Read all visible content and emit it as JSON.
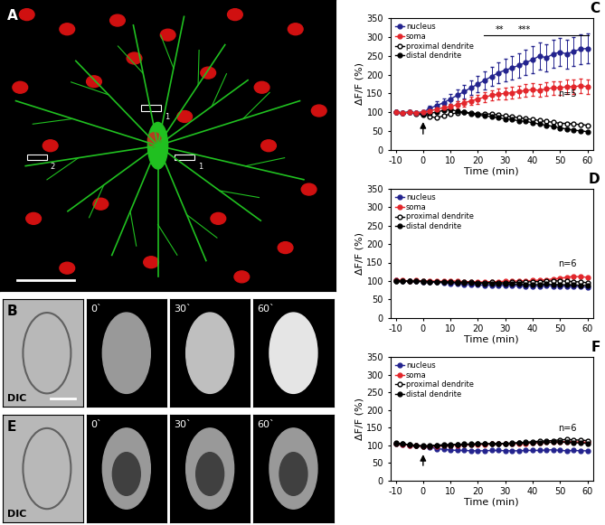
{
  "chart_data": [
    {
      "type": "line",
      "title": "C",
      "x_label": "Time (min)",
      "y_label": "ΔF/F (%)",
      "x": [
        -10,
        -7.5,
        -5,
        -2.5,
        0,
        2.5,
        5,
        7.5,
        10,
        12.5,
        15,
        17.5,
        20,
        22.5,
        25,
        27.5,
        30,
        32.5,
        35,
        37.5,
        40,
        42.5,
        45,
        47.5,
        50,
        52.5,
        55,
        57.5,
        60
      ],
      "xlim": [
        -12,
        62
      ],
      "xticks": [
        -10,
        0,
        10,
        20,
        30,
        40,
        50,
        60
      ],
      "ylim": [
        0,
        350
      ],
      "yticks": [
        0,
        50,
        100,
        150,
        200,
        250,
        300,
        350
      ],
      "legend": "upper left",
      "annotations": [
        "n=5"
      ],
      "significance": [
        "**",
        "***"
      ],
      "stimulus_time": 0,
      "series": [
        {
          "name": "nucleus",
          "color": "#23238e",
          "marker": "circle",
          "values": [
            100,
            98,
            100,
            99,
            100,
            110,
            118,
            125,
            135,
            145,
            155,
            165,
            175,
            185,
            195,
            205,
            212,
            218,
            225,
            232,
            240,
            250,
            245,
            255,
            260,
            255,
            262,
            268,
            270
          ],
          "errors": [
            4,
            4,
            4,
            4,
            4,
            8,
            10,
            12,
            14,
            16,
            18,
            20,
            22,
            24,
            26,
            28,
            30,
            32,
            33,
            34,
            35,
            36,
            36,
            37,
            38,
            38,
            39,
            40,
            40
          ]
        },
        {
          "name": "soma",
          "color": "#e3262b",
          "marker": "circle",
          "values": [
            100,
            97,
            100,
            98,
            100,
            103,
            108,
            112,
            115,
            120,
            125,
            130,
            135,
            140,
            145,
            148,
            150,
            152,
            155,
            158,
            160,
            158,
            162,
            165,
            165,
            168,
            168,
            170,
            168
          ],
          "errors": [
            3,
            3,
            3,
            3,
            3,
            5,
            6,
            7,
            8,
            9,
            10,
            11,
            12,
            13,
            14,
            14,
            15,
            15,
            16,
            16,
            17,
            17,
            18,
            18,
            18,
            19,
            19,
            20,
            20
          ]
        },
        {
          "name": "proximal dendrite",
          "color": "#000000",
          "marker": "open_circle",
          "values": [
            100,
            98,
            100,
            97,
            95,
            88,
            85,
            90,
            95,
            98,
            100,
            98,
            95,
            95,
            95,
            92,
            90,
            88,
            85,
            83,
            80,
            78,
            75,
            73,
            70,
            70,
            68,
            67,
            65
          ]
        },
        {
          "name": "distal dendrite",
          "color": "#000000",
          "marker": "circle",
          "values": [
            100,
            98,
            100,
            95,
            93,
            97,
            100,
            105,
            108,
            102,
            100,
            95,
            92,
            90,
            88,
            85,
            82,
            80,
            77,
            75,
            72,
            68,
            65,
            62,
            58,
            55,
            52,
            50,
            48
          ]
        }
      ]
    },
    {
      "type": "line",
      "title": "D",
      "x_label": "Time (min)",
      "y_label": "ΔF/F (%)",
      "x": [
        -10,
        -7.5,
        -5,
        -2.5,
        0,
        2.5,
        5,
        7.5,
        10,
        12.5,
        15,
        17.5,
        20,
        22.5,
        25,
        27.5,
        30,
        32.5,
        35,
        37.5,
        40,
        42.5,
        45,
        47.5,
        50,
        52.5,
        55,
        57.5,
        60
      ],
      "xlim": [
        -12,
        62
      ],
      "xticks": [
        -10,
        0,
        10,
        20,
        30,
        40,
        50,
        60
      ],
      "ylim": [
        0,
        350
      ],
      "yticks": [
        0,
        50,
        100,
        150,
        200,
        250,
        300,
        350
      ],
      "legend": "upper left",
      "annotations": [
        "n=6"
      ],
      "series": [
        {
          "name": "nucleus",
          "color": "#23238e",
          "marker": "circle",
          "values": [
            102,
            100,
            100,
            99,
            98,
            97,
            96,
            95,
            93,
            92,
            90,
            90,
            89,
            88,
            88,
            87,
            88,
            87,
            87,
            86,
            86,
            86,
            87,
            86,
            86,
            85,
            85,
            84,
            83
          ]
        },
        {
          "name": "soma",
          "color": "#e3262b",
          "marker": "circle",
          "values": [
            103,
            101,
            100,
            101,
            100,
            100,
            99,
            99,
            100,
            99,
            98,
            98,
            97,
            97,
            98,
            98,
            99,
            99,
            100,
            100,
            101,
            102,
            103,
            105,
            107,
            110,
            112,
            111,
            110
          ]
        },
        {
          "name": "proximal dendrite",
          "color": "#000000",
          "marker": "open_circle",
          "values": [
            100,
            99,
            100,
            99,
            99,
            98,
            98,
            97,
            97,
            96,
            96,
            96,
            95,
            95,
            96,
            95,
            95,
            96,
            96,
            97,
            98,
            98,
            99,
            100,
            100,
            99,
            98,
            97,
            95
          ]
        },
        {
          "name": "distal dendrite",
          "color": "#000000",
          "marker": "circle",
          "values": [
            100,
            100,
            99,
            99,
            98,
            98,
            97,
            96,
            96,
            95,
            95,
            94,
            93,
            93,
            92,
            92,
            92,
            91,
            91,
            90,
            90,
            90,
            91,
            90,
            90,
            89,
            89,
            88,
            88
          ]
        }
      ]
    },
    {
      "type": "line",
      "title": "F",
      "x_label": "Time (min)",
      "y_label": "ΔF/F (%)",
      "x": [
        -10,
        -7.5,
        -5,
        -2.5,
        0,
        2.5,
        5,
        7.5,
        10,
        12.5,
        15,
        17.5,
        20,
        22.5,
        25,
        27.5,
        30,
        32.5,
        35,
        37.5,
        40,
        42.5,
        45,
        47.5,
        50,
        52.5,
        55,
        57.5,
        60
      ],
      "xlim": [
        -12,
        62
      ],
      "xticks": [
        -10,
        0,
        10,
        20,
        30,
        40,
        50,
        60
      ],
      "ylim": [
        0,
        350
      ],
      "yticks": [
        0,
        50,
        100,
        150,
        200,
        250,
        300,
        350
      ],
      "legend": "upper left",
      "annotations": [
        "n=6"
      ],
      "stimulus_time": 0,
      "series": [
        {
          "name": "nucleus",
          "color": "#23238e",
          "marker": "circle",
          "values": [
            104,
            102,
            100,
            98,
            97,
            94,
            90,
            88,
            86,
            85,
            85,
            84,
            84,
            84,
            85,
            85,
            84,
            84,
            84,
            85,
            85,
            85,
            86,
            87,
            85,
            84,
            85,
            84,
            84
          ]
        },
        {
          "name": "soma",
          "color": "#e3262b",
          "marker": "circle",
          "values": [
            103,
            102,
            100,
            98,
            96,
            96,
            97,
            98,
            100,
            100,
            101,
            101,
            102,
            102,
            103,
            103,
            104,
            104,
            105,
            105,
            106,
            107,
            108,
            109,
            110,
            110,
            109,
            109,
            108
          ]
        },
        {
          "name": "proximal dendrite",
          "color": "#000000",
          "marker": "open_circle",
          "values": [
            105,
            103,
            101,
            99,
            97,
            97,
            98,
            99,
            100,
            101,
            102,
            102,
            103,
            103,
            104,
            104,
            105,
            106,
            107,
            108,
            110,
            111,
            112,
            113,
            115,
            116,
            115,
            114,
            113
          ]
        },
        {
          "name": "distal dendrite",
          "color": "#000000",
          "marker": "circle",
          "values": [
            106,
            104,
            101,
            99,
            98,
            99,
            100,
            101,
            102,
            102,
            103,
            103,
            104,
            104,
            104,
            104,
            105,
            105,
            106,
            106,
            107,
            107,
            108,
            108,
            109,
            108,
            107,
            106,
            105
          ]
        }
      ]
    }
  ],
  "images": {
    "A": {
      "label": "A",
      "roi_labels": [
        "1",
        "1",
        "2"
      ]
    },
    "B": {
      "label": "B",
      "frames": [
        "DIC",
        "0`",
        "30`",
        "60`"
      ]
    },
    "E": {
      "label": "E",
      "frames": [
        "DIC",
        "0`",
        "30`",
        "60`"
      ]
    }
  }
}
